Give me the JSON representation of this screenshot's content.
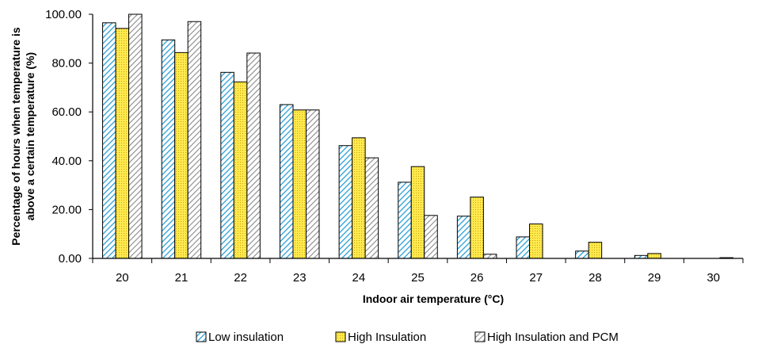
{
  "chart_data": {
    "type": "bar",
    "title": "",
    "xlabel": "Indoor air temperature (°C)",
    "ylabel_lines": [
      "Percentage of  hours when temperature is",
      "above a certain temperature (%)"
    ],
    "categories": [
      "20",
      "21",
      "22",
      "23",
      "24",
      "25",
      "26",
      "27",
      "28",
      "29",
      "30"
    ],
    "ylim": [
      0,
      100
    ],
    "yticks": [
      "0.00",
      "20.00",
      "40.00",
      "60.00",
      "80.00",
      "100.00"
    ],
    "ytick_values": [
      0,
      20,
      40,
      60,
      80,
      100
    ],
    "grid": false,
    "legend_position": "bottom",
    "series": [
      {
        "name": "Low insulation",
        "values": [
          96.5,
          89.5,
          76.2,
          63.0,
          46.2,
          31.2,
          17.3,
          8.8,
          3.0,
          1.2,
          0.0
        ],
        "color": "#2a9fd6",
        "pattern": "diagonal-hatch"
      },
      {
        "name": "High Insulation",
        "values": [
          94.2,
          84.3,
          72.3,
          60.8,
          49.4,
          37.6,
          25.1,
          14.1,
          6.6,
          2.0,
          0.0
        ],
        "color": "#ffe04a",
        "pattern": "grid-dots"
      },
      {
        "name": "High Insulation and PCM",
        "values": [
          100.0,
          97.0,
          84.1,
          60.8,
          41.2,
          17.6,
          1.7,
          0.0,
          0.0,
          0.0,
          0.3
        ],
        "color": "#8a8a8a",
        "pattern": "diagonal-hatch-gray"
      }
    ]
  }
}
